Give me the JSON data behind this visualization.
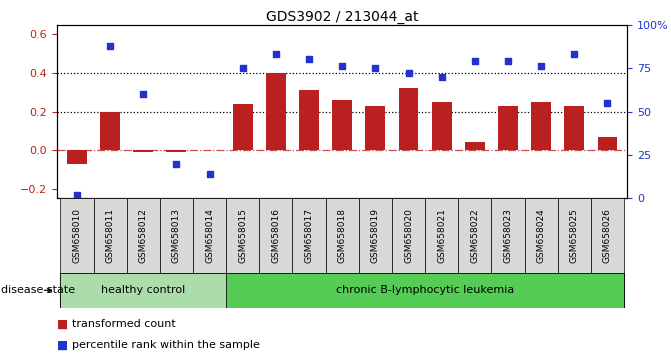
{
  "title": "GDS3902 / 213044_at",
  "samples": [
    "GSM658010",
    "GSM658011",
    "GSM658012",
    "GSM658013",
    "GSM658014",
    "GSM658015",
    "GSM658016",
    "GSM658017",
    "GSM658018",
    "GSM658019",
    "GSM658020",
    "GSM658021",
    "GSM658022",
    "GSM658023",
    "GSM658024",
    "GSM658025",
    "GSM658026"
  ],
  "transformed_count": [
    -0.07,
    0.2,
    -0.01,
    -0.01,
    0.0,
    0.24,
    0.4,
    0.31,
    0.26,
    0.23,
    0.32,
    0.25,
    0.04,
    0.23,
    0.25,
    0.23,
    0.07
  ],
  "percentile_rank_pct": [
    2,
    88,
    60,
    20,
    14,
    75,
    83,
    80,
    76,
    75,
    72,
    70,
    79,
    79,
    76,
    83,
    55
  ],
  "bar_color": "#bb2020",
  "dot_color": "#2233cc",
  "healthy_bg": "#aaddaa",
  "leukemia_bg": "#55cc55",
  "healthy_label": "healthy control",
  "leukemia_label": "chronic B-lymphocytic leukemia",
  "disease_state_label": "disease state",
  "legend_bar_label": "transformed count",
  "legend_dot_label": "percentile rank within the sample",
  "ylim_left": [
    -0.25,
    0.65
  ],
  "ylim_right": [
    0,
    100
  ],
  "yticks_left": [
    -0.2,
    0.0,
    0.2,
    0.4,
    0.6
  ],
  "yticks_right": [
    0,
    25,
    50,
    75,
    100
  ],
  "ytick_right_labels": [
    "0",
    "25",
    "50",
    "75",
    "100%"
  ],
  "healthy_count": 5,
  "leukemia_count": 12,
  "xticklabel_bg": "#d8d8d8"
}
